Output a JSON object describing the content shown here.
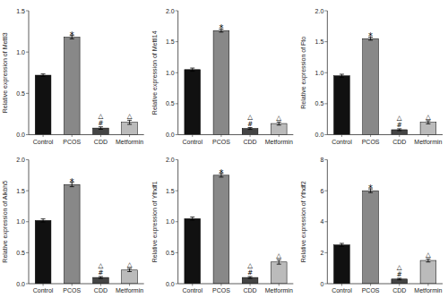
{
  "chart_data": [
    {
      "type": "bar",
      "ylabel": "Relative expression of Mettl3",
      "categories": [
        "Control",
        "PCOS",
        "CDD",
        "Metformin"
      ],
      "values": [
        0.72,
        1.18,
        0.08,
        0.15
      ],
      "errors": [
        0.015,
        0.02,
        0.015,
        0.025
      ],
      "colors": [
        "#111111",
        "#888888",
        "#444444",
        "#bbbbbb"
      ],
      "ylim": [
        0,
        1.5
      ],
      "yticks": [
        {
          "value": 0,
          "label": "0.0"
        },
        0.5,
        {
          "value": 1,
          "label": "1.0"
        },
        1.5
      ],
      "grid": false,
      "annotations": [
        {
          "text": "*",
          "category": "PCOS"
        },
        {
          "text": "#",
          "category": "CDD"
        },
        {
          "text": "△",
          "category": "CDD"
        },
        {
          "text": "△",
          "category": "Metformin"
        }
      ]
    },
    {
      "type": "bar",
      "ylabel": "Relative expression of Mettl14",
      "categories": [
        "Control",
        "PCOS",
        "CDD",
        "Metformin"
      ],
      "values": [
        1.05,
        1.68,
        0.1,
        0.18
      ],
      "errors": [
        0.025,
        0.025,
        0.015,
        0.025
      ],
      "colors": [
        "#111111",
        "#888888",
        "#444444",
        "#bbbbbb"
      ],
      "ylim": [
        0,
        2.0
      ],
      "yticks": [
        {
          "value": 0,
          "label": "0.0"
        },
        0.5,
        {
          "value": 1,
          "label": "1.0"
        },
        1.5,
        {
          "value": 2,
          "label": "2.0"
        }
      ],
      "grid": false,
      "annotations": [
        {
          "text": "*",
          "category": "PCOS"
        },
        {
          "text": "#",
          "category": "CDD"
        },
        {
          "text": "△",
          "category": "CDD"
        },
        {
          "text": "△",
          "category": "Metformin"
        }
      ]
    },
    {
      "type": "bar",
      "ylabel": "Relative expression of Fto",
      "categories": [
        "Control",
        "PCOS",
        "CDD",
        "Metformin"
      ],
      "values": [
        0.95,
        1.55,
        0.08,
        0.2
      ],
      "errors": [
        0.025,
        0.025,
        0.015,
        0.025
      ],
      "colors": [
        "#111111",
        "#888888",
        "#444444",
        "#bbbbbb"
      ],
      "ylim": [
        0,
        2.0
      ],
      "yticks": [
        {
          "value": 0,
          "label": "0.0"
        },
        0.5,
        {
          "value": 1,
          "label": "1.0"
        },
        1.5,
        {
          "value": 2,
          "label": "2.0"
        }
      ],
      "grid": false,
      "annotations": [
        {
          "text": "*",
          "category": "PCOS"
        },
        {
          "text": "#",
          "category": "CDD"
        },
        {
          "text": "△",
          "category": "CDD"
        },
        {
          "text": "△",
          "category": "Metformin"
        }
      ]
    },
    {
      "type": "bar",
      "ylabel": "Relative expression of Alkbh5",
      "categories": [
        "Control",
        "PCOS",
        "CDD",
        "Metformin"
      ],
      "values": [
        1.02,
        1.6,
        0.1,
        0.22
      ],
      "errors": [
        0.025,
        0.035,
        0.015,
        0.025
      ],
      "colors": [
        "#111111",
        "#888888",
        "#444444",
        "#bbbbbb"
      ],
      "ylim": [
        0,
        2.0
      ],
      "yticks": [
        {
          "value": 0,
          "label": "0.0"
        },
        0.5,
        {
          "value": 1,
          "label": "1.0"
        },
        1.5,
        {
          "value": 2,
          "label": "2.0"
        }
      ],
      "grid": false,
      "annotations": [
        {
          "text": "*",
          "category": "PCOS"
        },
        {
          "text": "#",
          "category": "CDD"
        },
        {
          "text": "△",
          "category": "CDD"
        },
        {
          "text": "△",
          "category": "Metformin"
        }
      ]
    },
    {
      "type": "bar",
      "ylabel": "Relative expression of Ythdf1",
      "categories": [
        "Control",
        "PCOS",
        "CDD",
        "Metformin"
      ],
      "values": [
        1.05,
        1.75,
        0.1,
        0.35
      ],
      "errors": [
        0.025,
        0.03,
        0.015,
        0.035
      ],
      "colors": [
        "#111111",
        "#888888",
        "#444444",
        "#bbbbbb"
      ],
      "ylim": [
        0,
        2.0
      ],
      "yticks": [
        {
          "value": 0,
          "label": "0.0"
        },
        0.5,
        {
          "value": 1,
          "label": "1.0"
        },
        1.5,
        {
          "value": 2,
          "label": "2.0"
        }
      ],
      "grid": false,
      "annotations": [
        {
          "text": "*",
          "category": "PCOS"
        },
        {
          "text": "#",
          "category": "CDD"
        },
        {
          "text": "△",
          "category": "CDD"
        },
        {
          "text": "△",
          "category": "Metformin"
        }
      ]
    },
    {
      "type": "bar",
      "ylabel": "Relative expression of Ythdf2",
      "categories": [
        "Control",
        "PCOS",
        "CDD",
        "Metformin"
      ],
      "values": [
        2.5,
        6.0,
        0.3,
        1.5
      ],
      "errors": [
        0.1,
        0.12,
        0.05,
        0.1
      ],
      "colors": [
        "#111111",
        "#888888",
        "#444444",
        "#bbbbbb"
      ],
      "ylim": [
        0,
        8.0
      ],
      "yticks": [
        0,
        2,
        4,
        6,
        8
      ],
      "grid": false,
      "annotations": [
        {
          "text": "*",
          "category": "PCOS"
        },
        {
          "text": "#",
          "category": "CDD"
        },
        {
          "text": "△",
          "category": "CDD"
        },
        {
          "text": "△",
          "category": "Metformin"
        }
      ]
    }
  ]
}
